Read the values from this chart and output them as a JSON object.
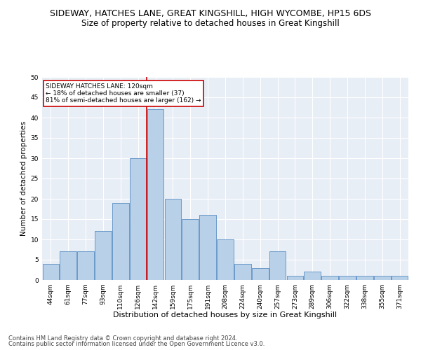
{
  "title": "SIDEWAY, HATCHES LANE, GREAT KINGSHILL, HIGH WYCOMBE, HP15 6DS",
  "subtitle": "Size of property relative to detached houses in Great Kingshill",
  "xlabel": "Distribution of detached houses by size in Great Kingshill",
  "ylabel": "Number of detached properties",
  "categories": [
    "44sqm",
    "61sqm",
    "77sqm",
    "93sqm",
    "110sqm",
    "126sqm",
    "142sqm",
    "159sqm",
    "175sqm",
    "191sqm",
    "208sqm",
    "224sqm",
    "240sqm",
    "257sqm",
    "273sqm",
    "289sqm",
    "306sqm",
    "322sqm",
    "338sqm",
    "355sqm",
    "371sqm"
  ],
  "values": [
    4,
    7,
    7,
    12,
    19,
    30,
    42,
    20,
    15,
    16,
    10,
    4,
    3,
    7,
    1,
    2,
    1,
    1,
    1,
    1,
    1
  ],
  "bar_color": "#b8d0e8",
  "bar_edge_color": "#5b8ec4",
  "background_color": "#e8eef6",
  "grid_color": "#ffffff",
  "vline_x": 5.5,
  "vline_color": "#cc0000",
  "annotation_text": "SIDEWAY HATCHES LANE: 120sqm\n← 18% of detached houses are smaller (37)\n81% of semi-detached houses are larger (162) →",
  "annotation_box_color": "#ffffff",
  "annotation_box_edge": "#cc0000",
  "footer_line1": "Contains HM Land Registry data © Crown copyright and database right 2024.",
  "footer_line2": "Contains public sector information licensed under the Open Government Licence v3.0.",
  "ylim": [
    0,
    50
  ],
  "yticks": [
    0,
    5,
    10,
    15,
    20,
    25,
    30,
    35,
    40,
    45,
    50
  ],
  "title_fontsize": 9,
  "subtitle_fontsize": 8.5,
  "xlabel_fontsize": 8,
  "ylabel_fontsize": 7.5,
  "tick_fontsize": 6.5,
  "footer_fontsize": 6,
  "annot_fontsize": 6.5
}
